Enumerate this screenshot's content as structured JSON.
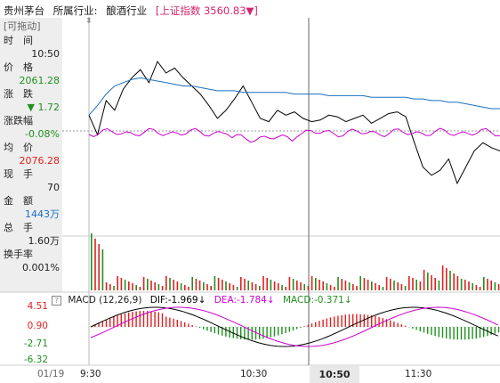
{
  "header": {
    "stock_name": "贵州茅台",
    "industry_label": "所属行业:",
    "industry": "酿酒行业",
    "index_text": "[上证指数 3560.83▼]"
  },
  "panel": {
    "drag": "[可拖动]",
    "time_label": "时　间",
    "time_value": "10:50",
    "price_label": "价　格",
    "price_value": "2061.28",
    "change_label": "涨　跌",
    "change_value": "▼ 1.72",
    "pct_label": "涨跌幅",
    "pct_value": "-0.08%",
    "avg_label": "均　价",
    "avg_value": "2076.28",
    "hand_label": "现　手",
    "hand_value": "70",
    "amount_label": "金　额",
    "amount_value": "1443万",
    "total_label": "总　手",
    "total_value": "1.60万",
    "turnover_label": "换手率",
    "turnover_value": "0.001%"
  },
  "macd": {
    "box": "?",
    "title": "MACD (12,26,9)",
    "dif": "DIF:-1.969↓",
    "dea": "DEA:-1.784↓",
    "macd": "MACD:-0.371↓",
    "y_labels": [
      "4.51",
      "0.90",
      "-2.71",
      "-6.32"
    ]
  },
  "axis": {
    "date": "01/19",
    "t1": "9:30",
    "t2": "10:30",
    "cursor": "10:50",
    "t3": "11:30"
  },
  "colors": {
    "price": "#000000",
    "avg": "#1a6fc0",
    "index": "#cc00cc",
    "up": "#e02020",
    "down": "#209020"
  },
  "chart_data": {
    "type": "line",
    "series": [
      {
        "values": [
          2062,
          2050,
          2071,
          2065,
          2078,
          2085,
          2090,
          2082,
          2095,
          2088,
          2091,
          2085,
          2080,
          2075,
          2068,
          2060,
          2065,
          2072,
          2080,
          2070,
          2060,
          2058,
          2065,
          2062,
          2064,
          2060,
          2058,
          2059,
          2062,
          2061,
          2058,
          2060,
          2062,
          2057,
          2060,
          2063,
          2064,
          2061,
          2045,
          2030,
          2025,
          2028,
          2035,
          2020,
          2030,
          2040,
          2045,
          2042,
          2040
        ]
      },
      {
        "values": [
          2062,
          2068,
          2075,
          2080,
          2082,
          2084,
          2085,
          2084,
          2083,
          2082,
          2081,
          2080,
          2080,
          2079,
          2078,
          2077,
          2077,
          2077,
          2076,
          2076,
          2076,
          2076,
          2076,
          2076,
          2075,
          2075,
          2075,
          2075,
          2074,
          2074,
          2074,
          2074,
          2074,
          2073,
          2073,
          2073,
          2073,
          2073,
          2072,
          2072,
          2071,
          2071,
          2070,
          2070,
          2069,
          2068,
          2067,
          2066,
          2066
        ]
      }
    ]
  }
}
